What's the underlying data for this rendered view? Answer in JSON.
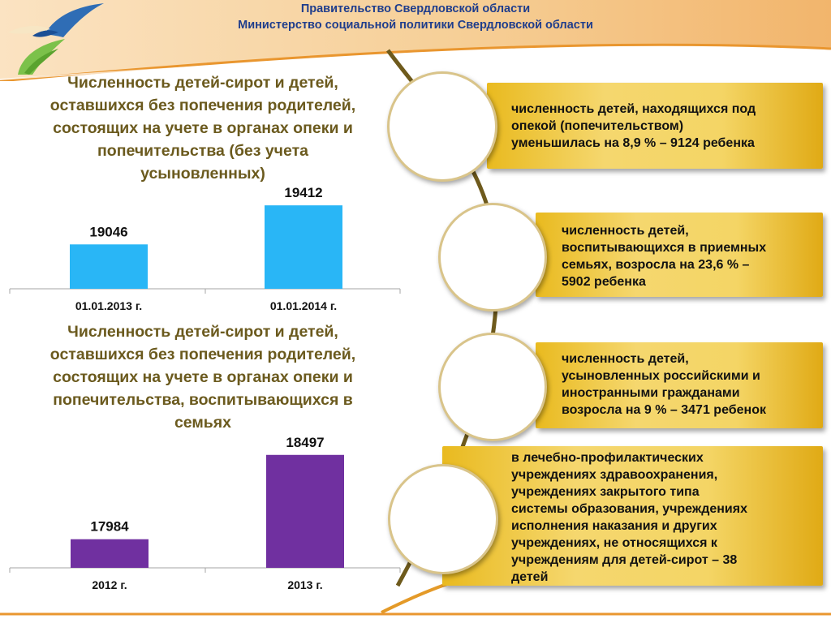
{
  "header": {
    "line1": "Правительство Свердловской области",
    "line2": "Министерство социальной политики Свердловской области"
  },
  "chart1": {
    "heading_lines": [
      "Численность детей-сирот и детей,",
      "оставшихся без попечения родителей,",
      "состоящих на учете в органах опеки и",
      "попечительства (без учета",
      "усыновленных)"
    ]
  },
  "chart2": {
    "heading_lines": [
      "Численность детей-сирот и детей,",
      "оставшихся без попечения родителей,",
      "состоящих на учете в органах опеки и",
      "попечительства, воспитывающихся в",
      "семьях"
    ]
  },
  "chart_data": [
    {
      "type": "bar",
      "title": "Численность детей-сирот и детей, оставшихся без попечения родителей, состоящих на учете в органах опеки и попечительства (без учета усыновленных)",
      "categories": [
        "01.01.2013 г.",
        "01.01.2014 г."
      ],
      "values": [
        19046,
        19412
      ],
      "value_labels": [
        "19046",
        "19412"
      ],
      "color": "#29b6f6",
      "ylim": [
        18630,
        19550
      ],
      "grid": false
    },
    {
      "type": "bar",
      "title": "Численность детей-сирот и детей, оставшихся без попечения родителей, состоящих на учете в органах опеки и попечительства, воспитывающихся в семьях",
      "categories": [
        "2012 г.",
        "2013 г."
      ],
      "values": [
        17984,
        18497
      ],
      "value_labels": [
        "17984",
        "18497"
      ],
      "color": "#7030a0",
      "ylim": [
        17810,
        18560
      ],
      "grid": false
    }
  ],
  "cards": [
    {
      "lines": [
        "численность детей, находящихся под",
        "опекой (попечительством)",
        "уменьшилась на 8,9 % – 9124 ребенка"
      ]
    },
    {
      "lines": [
        "численность детей,",
        "воспитывающихся в приемных",
        "семьях, возросла на 23,6 %  –",
        "5902 ребенка"
      ]
    },
    {
      "lines": [
        "численность детей,",
        "усыновленных российскими и",
        "иностранными  гражданами",
        "возросла на 9 % – 3471 ребенок"
      ]
    },
    {
      "lines": [
        "в лечебно-профилактических",
        "учреждениях здравоохранения,",
        "учреждениях закрытого типа",
        "системы образования, учреждениях",
        "исполнения наказания и других",
        "учреждениях, не относящихся к",
        "учреждениям для детей-сирот – 38",
        "детей"
      ]
    }
  ]
}
